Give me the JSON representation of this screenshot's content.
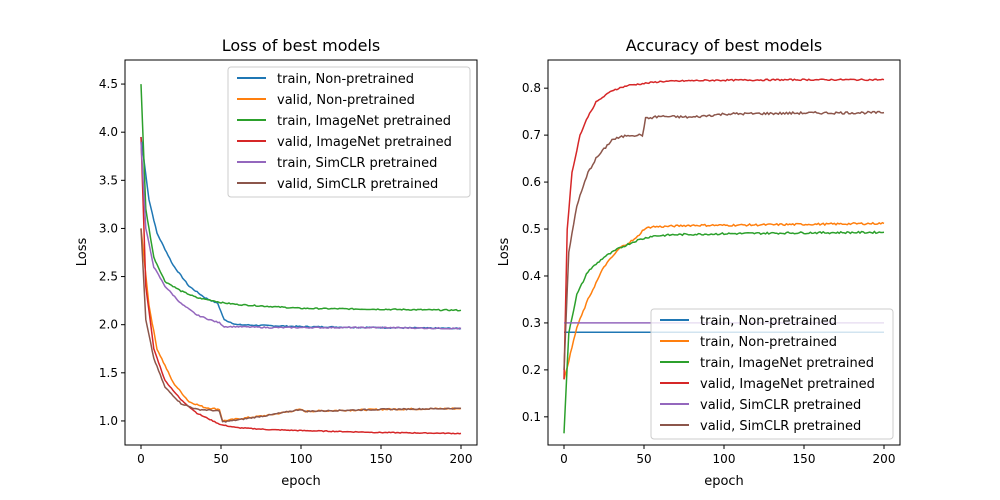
{
  "chart_data": [
    {
      "type": "line",
      "title": "Loss of best models",
      "xlabel": "epoch",
      "ylabel": "Loss",
      "xlim": [
        -10,
        210
      ],
      "ylim": [
        0.75,
        4.75
      ],
      "xticks": [
        0,
        50,
        100,
        150,
        200
      ],
      "yticks": [
        1.0,
        1.5,
        2.0,
        2.5,
        3.0,
        3.5,
        4.0,
        4.5
      ],
      "xtick_labels": [
        "0",
        "50",
        "100",
        "150",
        "200"
      ],
      "ytick_labels": [
        "1.0",
        "1.5",
        "2.0",
        "2.5",
        "3.0",
        "3.5",
        "4.0",
        "4.5"
      ],
      "grid": false,
      "legend_position": "top-right",
      "series": [
        {
          "name": "train, Non-pretrained",
          "color": "#1f77b4",
          "x": [
            0,
            5,
            10,
            20,
            30,
            40,
            48,
            52,
            60,
            80,
            100,
            150,
            200
          ],
          "values": [
            3.95,
            3.3,
            2.95,
            2.62,
            2.4,
            2.28,
            2.22,
            2.05,
            2.0,
            1.99,
            1.98,
            1.97,
            1.96
          ]
        },
        {
          "name": "valid, Non-pretrained",
          "color": "#ff7f0e",
          "x": [
            0,
            5,
            10,
            20,
            30,
            40,
            49,
            51,
            60,
            80,
            100,
            102,
            150,
            200
          ],
          "values": [
            3.0,
            2.2,
            1.75,
            1.4,
            1.2,
            1.14,
            1.12,
            1.0,
            1.02,
            1.06,
            1.12,
            1.1,
            1.12,
            1.13
          ]
        },
        {
          "name": "train, ImageNet pretrained",
          "color": "#2ca02c",
          "x": [
            0,
            3,
            8,
            15,
            25,
            35,
            45,
            50,
            60,
            80,
            100,
            150,
            200
          ],
          "values": [
            4.5,
            3.2,
            2.7,
            2.45,
            2.35,
            2.28,
            2.25,
            2.23,
            2.21,
            2.19,
            2.17,
            2.16,
            2.15
          ]
        },
        {
          "name": "valid, ImageNet pretrained",
          "color": "#d62728",
          "x": [
            0,
            3,
            8,
            15,
            25,
            35,
            45,
            50,
            60,
            80,
            100,
            150,
            200
          ],
          "values": [
            3.95,
            2.4,
            1.75,
            1.42,
            1.22,
            1.08,
            1.0,
            0.96,
            0.93,
            0.91,
            0.9,
            0.88,
            0.87
          ]
        },
        {
          "name": "train, SimCLR pretrained",
          "color": "#9467bd",
          "x": [
            0,
            3,
            8,
            15,
            25,
            35,
            45,
            49,
            52,
            60,
            80,
            100,
            150,
            200
          ],
          "values": [
            3.9,
            3.0,
            2.6,
            2.4,
            2.22,
            2.1,
            2.04,
            2.02,
            1.98,
            1.98,
            1.97,
            1.97,
            1.97,
            1.96
          ]
        },
        {
          "name": "valid, SimCLR pretrained",
          "color": "#8c564b",
          "x": [
            0,
            3,
            8,
            15,
            25,
            35,
            45,
            49,
            51,
            60,
            80,
            100,
            102,
            150,
            200
          ],
          "values": [
            3.0,
            2.05,
            1.65,
            1.35,
            1.18,
            1.12,
            1.11,
            1.1,
            0.99,
            1.01,
            1.06,
            1.12,
            1.1,
            1.12,
            1.13
          ]
        }
      ]
    },
    {
      "type": "line",
      "title": "Accuracy of best models",
      "xlabel": "epoch",
      "ylabel": "Loss",
      "xlim": [
        -10,
        210
      ],
      "ylim": [
        0.04,
        0.86
      ],
      "xticks": [
        0,
        50,
        100,
        150,
        200
      ],
      "yticks": [
        0.1,
        0.2,
        0.3,
        0.4,
        0.5,
        0.6,
        0.7,
        0.8
      ],
      "xtick_labels": [
        "0",
        "50",
        "100",
        "150",
        "200"
      ],
      "ytick_labels": [
        "0.1",
        "0.2",
        "0.3",
        "0.4",
        "0.5",
        "0.6",
        "0.7",
        "0.8"
      ],
      "grid": false,
      "legend_position": "bottom-right",
      "series": [
        {
          "name": "train, Non-pretrained",
          "color": "#1f77b4",
          "x": [
            0,
            200
          ],
          "values": [
            0.28,
            0.28
          ]
        },
        {
          "name": "train, Non-pretrained",
          "color": "#ff7f0e",
          "x": [
            0,
            3,
            8,
            15,
            25,
            35,
            45,
            50,
            55,
            60,
            80,
            100,
            150,
            200
          ],
          "values": [
            0.18,
            0.22,
            0.29,
            0.35,
            0.42,
            0.46,
            0.48,
            0.5,
            0.505,
            0.505,
            0.508,
            0.508,
            0.51,
            0.512
          ]
        },
        {
          "name": "train, ImageNet pretrained",
          "color": "#2ca02c",
          "x": [
            0,
            3,
            8,
            15,
            25,
            35,
            45,
            55,
            70,
            100,
            150,
            200
          ],
          "values": [
            0.065,
            0.28,
            0.36,
            0.41,
            0.44,
            0.46,
            0.475,
            0.485,
            0.488,
            0.49,
            0.492,
            0.493
          ]
        },
        {
          "name": "valid, ImageNet pretrained",
          "color": "#d62728",
          "x": [
            0,
            2,
            5,
            10,
            15,
            20,
            30,
            40,
            50,
            60,
            80,
            100,
            150,
            200
          ],
          "values": [
            0.18,
            0.5,
            0.62,
            0.7,
            0.74,
            0.77,
            0.795,
            0.806,
            0.81,
            0.814,
            0.816,
            0.817,
            0.818,
            0.818
          ]
        },
        {
          "name": "valid, SimCLR pretrained",
          "color": "#9467bd",
          "x": [
            0,
            200
          ],
          "values": [
            0.3,
            0.3
          ]
        },
        {
          "name": "valid, SimCLR pretrained",
          "color": "#8c564b",
          "x": [
            0,
            3,
            8,
            15,
            20,
            25,
            30,
            40,
            49,
            51,
            60,
            80,
            100,
            150,
            200
          ],
          "values": [
            0.2,
            0.45,
            0.55,
            0.62,
            0.65,
            0.67,
            0.69,
            0.7,
            0.7,
            0.735,
            0.74,
            0.738,
            0.745,
            0.747,
            0.748
          ]
        }
      ]
    }
  ]
}
